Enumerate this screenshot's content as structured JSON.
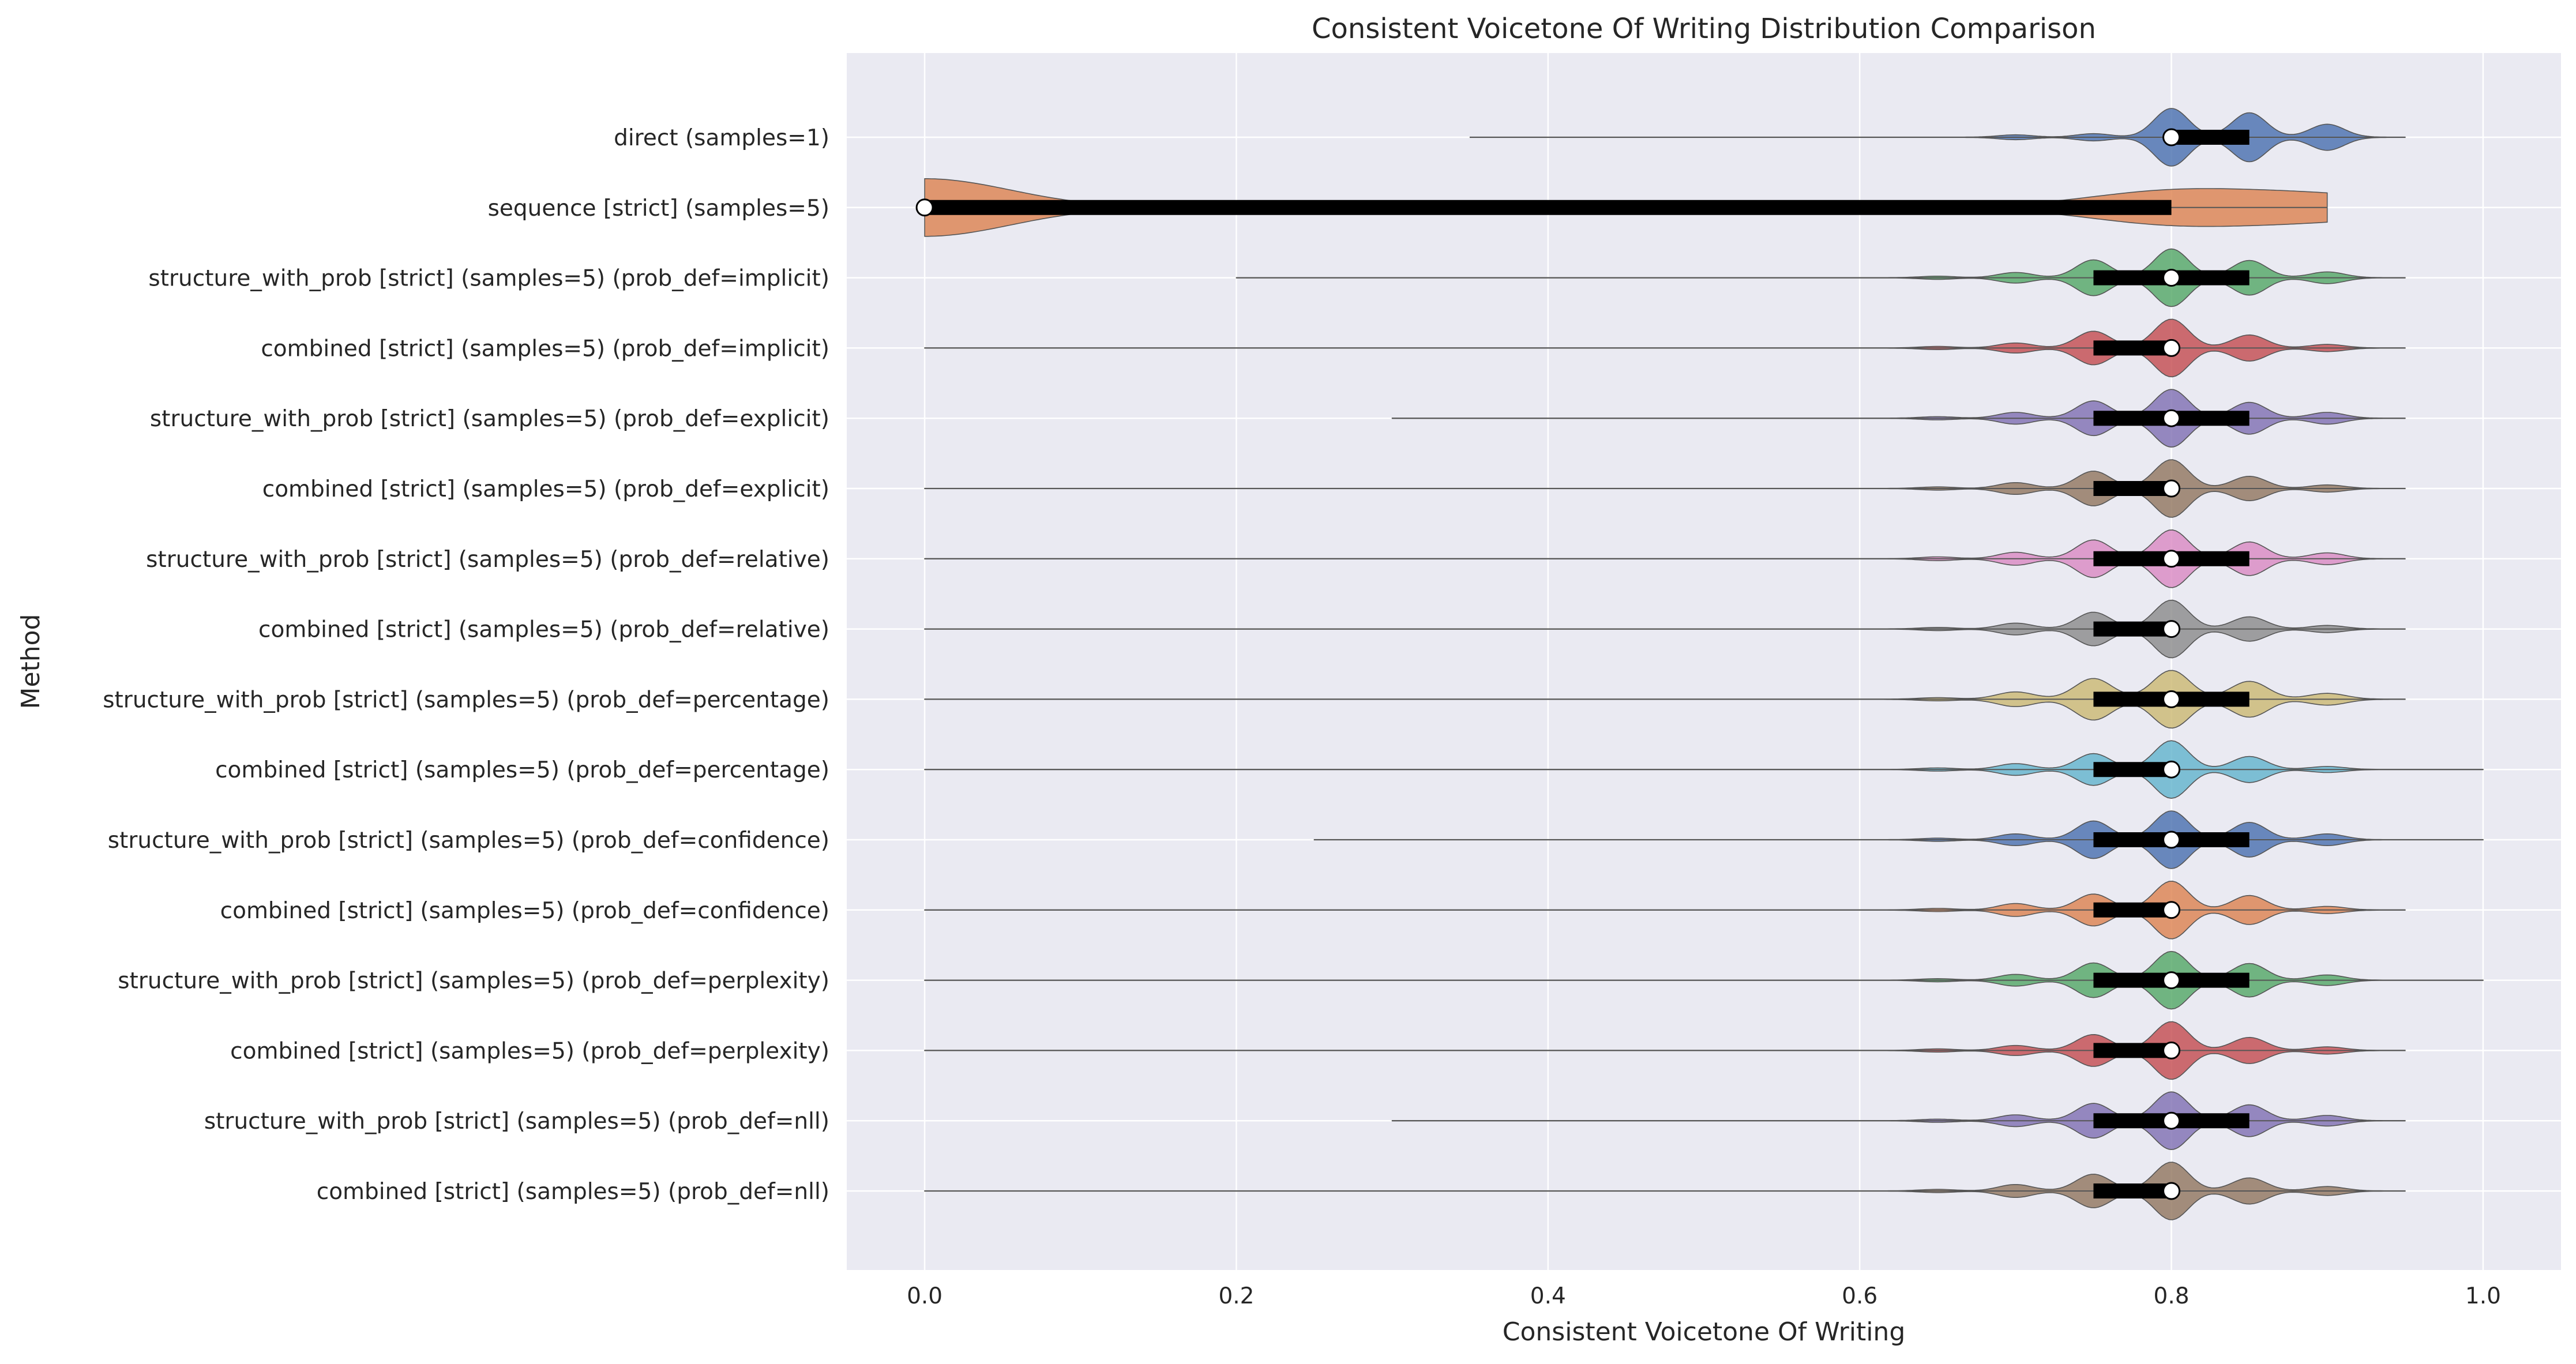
{
  "chart_data": {
    "type": "violin",
    "orientation": "horizontal",
    "title": "Consistent Voicetone Of Writing Distribution Comparison",
    "xlabel": "Consistent Voicetone Of Writing",
    "ylabel": "Method",
    "xlim": [
      -0.05,
      1.05
    ],
    "xticks": [
      0.0,
      0.2,
      0.4,
      0.6,
      0.8,
      1.0
    ],
    "xtick_labels": [
      "0.0",
      "0.2",
      "0.4",
      "0.6",
      "0.8",
      "1.0"
    ],
    "grid": true,
    "legend": "none",
    "series": [
      {
        "name": "direct (samples=1)",
        "color": "#4c72b0",
        "min": 0.35,
        "max": 0.95,
        "q1": 0.8,
        "median": 0.8,
        "q3": 0.85,
        "modes": [
          [
            0.7,
            0.08
          ],
          [
            0.75,
            0.12
          ],
          [
            0.8,
            1.0
          ],
          [
            0.85,
            0.85
          ],
          [
            0.9,
            0.45
          ]
        ],
        "bw": 0.011
      },
      {
        "name": "sequence [strict] (samples=5)",
        "color": "#dd8452",
        "min": 0.0,
        "max": 0.9,
        "q1": 0.0,
        "median": 0.0,
        "q3": 0.8,
        "modes": [
          [
            0.0,
            1.0
          ],
          [
            0.8,
            0.55
          ],
          [
            0.9,
            0.4
          ]
        ],
        "bw": 0.055
      },
      {
        "name": "structure_with_prob [strict] (samples=5) (prob_def=implicit)",
        "color": "#55a868",
        "min": 0.2,
        "max": 0.95,
        "q1": 0.75,
        "median": 0.8,
        "q3": 0.85,
        "modes": [
          [
            0.65,
            0.05
          ],
          [
            0.7,
            0.18
          ],
          [
            0.75,
            0.62
          ],
          [
            0.8,
            1.0
          ],
          [
            0.85,
            0.6
          ],
          [
            0.9,
            0.2
          ]
        ],
        "bw": 0.011
      },
      {
        "name": "combined [strict] (samples=5) (prob_def=implicit)",
        "color": "#c44e52",
        "min": 0.0,
        "max": 0.95,
        "q1": 0.75,
        "median": 0.8,
        "q3": 0.8,
        "modes": [
          [
            0.65,
            0.05
          ],
          [
            0.7,
            0.17
          ],
          [
            0.75,
            0.58
          ],
          [
            0.8,
            1.0
          ],
          [
            0.85,
            0.45
          ],
          [
            0.9,
            0.12
          ]
        ],
        "bw": 0.011
      },
      {
        "name": "structure_with_prob [strict] (samples=5) (prob_def=explicit)",
        "color": "#8172b3",
        "min": 0.3,
        "max": 0.95,
        "q1": 0.75,
        "median": 0.8,
        "q3": 0.85,
        "modes": [
          [
            0.65,
            0.05
          ],
          [
            0.7,
            0.2
          ],
          [
            0.75,
            0.6
          ],
          [
            0.8,
            1.0
          ],
          [
            0.85,
            0.55
          ],
          [
            0.9,
            0.2
          ]
        ],
        "bw": 0.011
      },
      {
        "name": "combined [strict] (samples=5) (prob_def=explicit)",
        "color": "#937860",
        "min": 0.0,
        "max": 0.95,
        "q1": 0.75,
        "median": 0.8,
        "q3": 0.8,
        "modes": [
          [
            0.65,
            0.05
          ],
          [
            0.7,
            0.2
          ],
          [
            0.75,
            0.6
          ],
          [
            0.8,
            1.0
          ],
          [
            0.85,
            0.42
          ],
          [
            0.9,
            0.12
          ]
        ],
        "bw": 0.011
      },
      {
        "name": "structure_with_prob [strict] (samples=5) (prob_def=relative)",
        "color": "#da8bc3",
        "min": 0.0,
        "max": 0.95,
        "q1": 0.75,
        "median": 0.8,
        "q3": 0.85,
        "modes": [
          [
            0.65,
            0.06
          ],
          [
            0.7,
            0.22
          ],
          [
            0.75,
            0.65
          ],
          [
            0.8,
            1.0
          ],
          [
            0.85,
            0.58
          ],
          [
            0.9,
            0.2
          ]
        ],
        "bw": 0.011
      },
      {
        "name": "combined [strict] (samples=5) (prob_def=relative)",
        "color": "#8c8c8c",
        "min": 0.0,
        "max": 0.95,
        "q1": 0.75,
        "median": 0.8,
        "q3": 0.8,
        "modes": [
          [
            0.65,
            0.05
          ],
          [
            0.7,
            0.2
          ],
          [
            0.75,
            0.58
          ],
          [
            0.8,
            1.0
          ],
          [
            0.85,
            0.42
          ],
          [
            0.9,
            0.12
          ]
        ],
        "bw": 0.011
      },
      {
        "name": "structure_with_prob [strict] (samples=5) (prob_def=percentage)",
        "color": "#ccb974",
        "min": 0.0,
        "max": 0.95,
        "q1": 0.75,
        "median": 0.8,
        "q3": 0.85,
        "modes": [
          [
            0.65,
            0.05
          ],
          [
            0.7,
            0.25
          ],
          [
            0.75,
            0.72
          ],
          [
            0.8,
            1.0
          ],
          [
            0.85,
            0.62
          ],
          [
            0.9,
            0.2
          ]
        ],
        "bw": 0.012
      },
      {
        "name": "combined [strict] (samples=5) (prob_def=percentage)",
        "color": "#64b5cd",
        "min": 0.0,
        "max": 1.0,
        "q1": 0.75,
        "median": 0.8,
        "q3": 0.8,
        "modes": [
          [
            0.65,
            0.05
          ],
          [
            0.7,
            0.2
          ],
          [
            0.75,
            0.55
          ],
          [
            0.8,
            1.0
          ],
          [
            0.85,
            0.45
          ],
          [
            0.9,
            0.1
          ]
        ],
        "bw": 0.011
      },
      {
        "name": "structure_with_prob [strict] (samples=5) (prob_def=confidence)",
        "color": "#4c72b0",
        "min": 0.25,
        "max": 1.0,
        "q1": 0.75,
        "median": 0.8,
        "q3": 0.85,
        "modes": [
          [
            0.65,
            0.05
          ],
          [
            0.7,
            0.2
          ],
          [
            0.75,
            0.65
          ],
          [
            0.8,
            1.0
          ],
          [
            0.85,
            0.6
          ],
          [
            0.9,
            0.2
          ]
        ],
        "bw": 0.011
      },
      {
        "name": "combined [strict] (samples=5) (prob_def=confidence)",
        "color": "#dd8452",
        "min": 0.0,
        "max": 0.95,
        "q1": 0.75,
        "median": 0.8,
        "q3": 0.8,
        "modes": [
          [
            0.65,
            0.05
          ],
          [
            0.7,
            0.22
          ],
          [
            0.75,
            0.55
          ],
          [
            0.8,
            1.0
          ],
          [
            0.85,
            0.5
          ],
          [
            0.9,
            0.12
          ]
        ],
        "bw": 0.011
      },
      {
        "name": "structure_with_prob [strict] (samples=5) (prob_def=perplexity)",
        "color": "#55a868",
        "min": 0.0,
        "max": 1.0,
        "q1": 0.75,
        "median": 0.8,
        "q3": 0.85,
        "modes": [
          [
            0.65,
            0.05
          ],
          [
            0.7,
            0.2
          ],
          [
            0.75,
            0.6
          ],
          [
            0.8,
            1.0
          ],
          [
            0.85,
            0.58
          ],
          [
            0.9,
            0.18
          ]
        ],
        "bw": 0.011
      },
      {
        "name": "combined [strict] (samples=5) (prob_def=perplexity)",
        "color": "#c44e52",
        "min": 0.0,
        "max": 0.95,
        "q1": 0.75,
        "median": 0.8,
        "q3": 0.8,
        "modes": [
          [
            0.65,
            0.05
          ],
          [
            0.7,
            0.17
          ],
          [
            0.75,
            0.55
          ],
          [
            0.8,
            1.0
          ],
          [
            0.85,
            0.45
          ],
          [
            0.9,
            0.12
          ]
        ],
        "bw": 0.011
      },
      {
        "name": "structure_with_prob [strict] (samples=5) (prob_def=nll)",
        "color": "#8172b3",
        "min": 0.3,
        "max": 0.95,
        "q1": 0.75,
        "median": 0.8,
        "q3": 0.85,
        "modes": [
          [
            0.65,
            0.05
          ],
          [
            0.7,
            0.2
          ],
          [
            0.75,
            0.6
          ],
          [
            0.8,
            1.0
          ],
          [
            0.85,
            0.55
          ],
          [
            0.9,
            0.18
          ]
        ],
        "bw": 0.011
      },
      {
        "name": "combined [strict] (samples=5) (prob_def=nll)",
        "color": "#937860",
        "min": 0.0,
        "max": 0.95,
        "q1": 0.75,
        "median": 0.8,
        "q3": 0.8,
        "modes": [
          [
            0.65,
            0.05
          ],
          [
            0.7,
            0.22
          ],
          [
            0.75,
            0.58
          ],
          [
            0.8,
            1.0
          ],
          [
            0.85,
            0.45
          ],
          [
            0.9,
            0.15
          ]
        ],
        "bw": 0.011
      }
    ]
  }
}
